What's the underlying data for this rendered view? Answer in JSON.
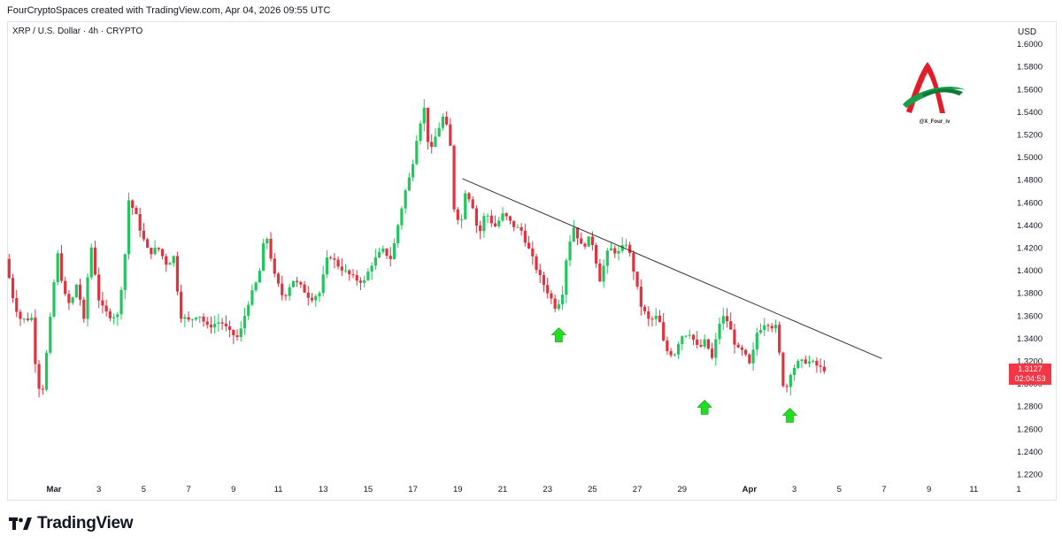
{
  "header": {
    "caption": "FourCryptoSpaces created with TradingView.com, Apr 04, 2026 09:55 UTC",
    "symbol_line": "XRP / U.S. Dollar · 4h · CRYPTO",
    "currency": "USD"
  },
  "price_tag": {
    "price": "1.3127",
    "countdown": "02:04:53",
    "color": "#f23645"
  },
  "watermark": {
    "handle": "@X_Four_iv"
  },
  "brand": {
    "name": "TradingView",
    "icon": "tradingview-logo-icon"
  },
  "colors": {
    "up": "#22c55e",
    "down": "#e0323f",
    "arrow": "#22dd22",
    "trendline": "#333333"
  },
  "chart_data": {
    "type": "candlestick",
    "title": "XRP / U.S. Dollar · 4h · CRYPTO",
    "y_axis": {
      "unit": "USD",
      "ylim": [
        1.2,
        1.61
      ],
      "ticks": [
        "1.2200",
        "1.2400",
        "1.2600",
        "1.2800",
        "1.3000",
        "1.3200",
        "1.3400",
        "1.3600",
        "1.3800",
        "1.4000",
        "1.4200",
        "1.4400",
        "1.4600",
        "1.4800",
        "1.5000",
        "1.5200",
        "1.5400",
        "1.5600",
        "1.5800",
        "1.6000"
      ]
    },
    "x_axis": {
      "ticks": [
        {
          "label": "Mar",
          "day": 0
        },
        {
          "label": "3",
          "day": 2
        },
        {
          "label": "5",
          "day": 4
        },
        {
          "label": "7",
          "day": 6
        },
        {
          "label": "9",
          "day": 8
        },
        {
          "label": "11",
          "day": 10
        },
        {
          "label": "13",
          "day": 12
        },
        {
          "label": "15",
          "day": 14
        },
        {
          "label": "17",
          "day": 16
        },
        {
          "label": "19",
          "day": 18
        },
        {
          "label": "21",
          "day": 20
        },
        {
          "label": "23",
          "day": 22
        },
        {
          "label": "25",
          "day": 24
        },
        {
          "label": "27",
          "day": 26
        },
        {
          "label": "29",
          "day": 28
        },
        {
          "label": "Apr",
          "day": 31
        },
        {
          "label": "3",
          "day": 33
        },
        {
          "label": "5",
          "day": 35
        },
        {
          "label": "7",
          "day": 37
        },
        {
          "label": "9",
          "day": 39
        },
        {
          "label": "11",
          "day": 41
        },
        {
          "label": "1",
          "day": 43
        }
      ]
    },
    "anchors": [
      {
        "day": -2.0,
        "price": 1.41
      },
      {
        "day": -1.6,
        "price": 1.37
      },
      {
        "day": -1.3,
        "price": 1.356
      },
      {
        "day": -0.8,
        "price": 1.358
      },
      {
        "day": -0.6,
        "price": 1.3
      },
      {
        "day": -0.35,
        "price": 1.293
      },
      {
        "day": 0.1,
        "price": 1.375
      },
      {
        "day": 0.3,
        "price": 1.418
      },
      {
        "day": 0.6,
        "price": 1.38
      },
      {
        "day": 0.9,
        "price": 1.368
      },
      {
        "day": 1.2,
        "price": 1.39
      },
      {
        "day": 1.5,
        "price": 1.355
      },
      {
        "day": 1.8,
        "price": 1.425
      },
      {
        "day": 2.2,
        "price": 1.37
      },
      {
        "day": 2.6,
        "price": 1.36
      },
      {
        "day": 3.0,
        "price": 1.36
      },
      {
        "day": 3.3,
        "price": 1.405
      },
      {
        "day": 3.5,
        "price": 1.462
      },
      {
        "day": 3.8,
        "price": 1.45
      },
      {
        "day": 4.1,
        "price": 1.43
      },
      {
        "day": 4.4,
        "price": 1.415
      },
      {
        "day": 4.8,
        "price": 1.42
      },
      {
        "day": 5.2,
        "price": 1.405
      },
      {
        "day": 5.5,
        "price": 1.412
      },
      {
        "day": 5.8,
        "price": 1.36
      },
      {
        "day": 6.2,
        "price": 1.355
      },
      {
        "day": 6.6,
        "price": 1.362
      },
      {
        "day": 7.0,
        "price": 1.35
      },
      {
        "day": 7.6,
        "price": 1.355
      },
      {
        "day": 8.0,
        "price": 1.345
      },
      {
        "day": 8.4,
        "price": 1.34
      },
      {
        "day": 8.8,
        "price": 1.37
      },
      {
        "day": 9.3,
        "price": 1.395
      },
      {
        "day": 9.6,
        "price": 1.435
      },
      {
        "day": 10.0,
        "price": 1.395
      },
      {
        "day": 10.4,
        "price": 1.375
      },
      {
        "day": 10.8,
        "price": 1.392
      },
      {
        "day": 11.2,
        "price": 1.385
      },
      {
        "day": 11.6,
        "price": 1.375
      },
      {
        "day": 12.0,
        "price": 1.38
      },
      {
        "day": 12.4,
        "price": 1.415
      },
      {
        "day": 12.8,
        "price": 1.405
      },
      {
        "day": 13.2,
        "price": 1.398
      },
      {
        "day": 13.6,
        "price": 1.392
      },
      {
        "day": 14.0,
        "price": 1.39
      },
      {
        "day": 14.3,
        "price": 1.405
      },
      {
        "day": 14.8,
        "price": 1.418
      },
      {
        "day": 15.2,
        "price": 1.41
      },
      {
        "day": 15.5,
        "price": 1.44
      },
      {
        "day": 15.8,
        "price": 1.468
      },
      {
        "day": 16.1,
        "price": 1.488
      },
      {
        "day": 16.4,
        "price": 1.525
      },
      {
        "day": 16.7,
        "price": 1.545
      },
      {
        "day": 16.9,
        "price": 1.5
      },
      {
        "day": 17.2,
        "price": 1.52
      },
      {
        "day": 17.5,
        "price": 1.535
      },
      {
        "day": 17.8,
        "price": 1.52
      },
      {
        "day": 18.0,
        "price": 1.455
      },
      {
        "day": 18.3,
        "price": 1.44
      },
      {
        "day": 18.5,
        "price": 1.47
      },
      {
        "day": 18.8,
        "price": 1.46
      },
      {
        "day": 19.1,
        "price": 1.43
      },
      {
        "day": 19.4,
        "price": 1.452
      },
      {
        "day": 19.8,
        "price": 1.438
      },
      {
        "day": 20.2,
        "price": 1.45
      },
      {
        "day": 20.6,
        "price": 1.44
      },
      {
        "day": 21.0,
        "price": 1.435
      },
      {
        "day": 21.4,
        "price": 1.415
      },
      {
        "day": 21.8,
        "price": 1.395
      },
      {
        "day": 22.2,
        "price": 1.38
      },
      {
        "day": 22.5,
        "price": 1.368
      },
      {
        "day": 22.8,
        "price": 1.375
      },
      {
        "day": 23.0,
        "price": 1.41
      },
      {
        "day": 23.3,
        "price": 1.44
      },
      {
        "day": 23.7,
        "price": 1.42
      },
      {
        "day": 24.1,
        "price": 1.43
      },
      {
        "day": 24.5,
        "price": 1.392
      },
      {
        "day": 24.9,
        "price": 1.42
      },
      {
        "day": 25.3,
        "price": 1.415
      },
      {
        "day": 25.7,
        "price": 1.425
      },
      {
        "day": 26.0,
        "price": 1.4
      },
      {
        "day": 26.3,
        "price": 1.37
      },
      {
        "day": 26.7,
        "price": 1.355
      },
      {
        "day": 27.1,
        "price": 1.36
      },
      {
        "day": 27.4,
        "price": 1.33
      },
      {
        "day": 27.8,
        "price": 1.325
      },
      {
        "day": 28.1,
        "price": 1.342
      },
      {
        "day": 28.5,
        "price": 1.345
      },
      {
        "day": 28.9,
        "price": 1.33
      },
      {
        "day": 29.2,
        "price": 1.338
      },
      {
        "day": 29.5,
        "price": 1.322
      },
      {
        "day": 29.9,
        "price": 1.36
      },
      {
        "day": 30.2,
        "price": 1.355
      },
      {
        "day": 30.6,
        "price": 1.33
      },
      {
        "day": 30.9,
        "price": 1.328
      },
      {
        "day": 31.2,
        "price": 1.315
      },
      {
        "day": 31.5,
        "price": 1.345
      },
      {
        "day": 31.9,
        "price": 1.355
      },
      {
        "day": 32.2,
        "price": 1.35
      },
      {
        "day": 32.4,
        "price": 1.35
      },
      {
        "day": 32.6,
        "price": 1.302
      },
      {
        "day": 32.8,
        "price": 1.295
      },
      {
        "day": 33.0,
        "price": 1.31
      },
      {
        "day": 33.3,
        "price": 1.318
      },
      {
        "day": 33.7,
        "price": 1.32
      },
      {
        "day": 34.0,
        "price": 1.318
      },
      {
        "day": 34.4,
        "price": 1.3127
      }
    ],
    "trendline": {
      "start": {
        "day": 18.2,
        "price": 1.481
      },
      "end": {
        "day": 36.9,
        "price": 1.322
      }
    },
    "support_arrows": [
      {
        "day": 22.5,
        "price": 1.343
      },
      {
        "day": 29.0,
        "price": 1.279
      },
      {
        "day": 32.8,
        "price": 1.272
      }
    ]
  }
}
